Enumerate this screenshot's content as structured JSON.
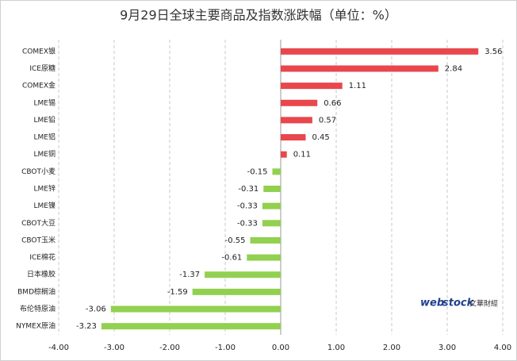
{
  "chart_data": {
    "type": "hbar",
    "title": "9月29日全球主要商品及指数涨跌幅（单位：%）",
    "categories": [
      "COMEX银",
      "ICE原糖",
      "COMEX金",
      "LME锡",
      "LME铅",
      "LME铝",
      "LME铜",
      "CBOT小麦",
      "LME锌",
      "LME镍",
      "CBOT大豆",
      "CBOT玉米",
      "ICE棉花",
      "日本橡胶",
      "BMD棕榈油",
      "布伦特原油",
      "NYMEX原油"
    ],
    "values": [
      3.56,
      2.84,
      1.11,
      0.66,
      0.57,
      0.45,
      0.11,
      -0.15,
      -0.31,
      -0.33,
      -0.33,
      -0.55,
      -0.61,
      -1.37,
      -1.59,
      -3.06,
      -3.23
    ],
    "positive_color": "#e8474c",
    "negative_color": "#92d050",
    "xlim": [
      -4,
      4
    ],
    "xticks": [
      {
        "value": -4,
        "label": "-4.00"
      },
      {
        "value": -3,
        "label": "-3.00"
      },
      {
        "value": -2,
        "label": "-2.00"
      },
      {
        "value": -1,
        "label": "-1.00"
      },
      {
        "value": 0,
        "label": "0.00"
      },
      {
        "value": 1,
        "label": "1.00"
      },
      {
        "value": 2,
        "label": "2.00"
      },
      {
        "value": 3,
        "label": "3.00"
      },
      {
        "value": 4,
        "label": "4.00"
      }
    ],
    "grid": true,
    "logo": {
      "brand_a": "web",
      "brand_b": "stock",
      "name": "文華財經"
    }
  }
}
